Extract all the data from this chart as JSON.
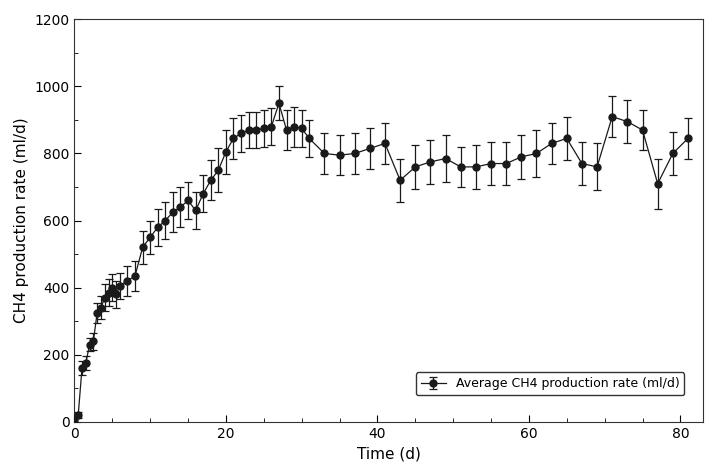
{
  "x": [
    0,
    0.5,
    1,
    1.5,
    2,
    2.5,
    3,
    3.5,
    4,
    4.5,
    5,
    5.5,
    6,
    7,
    8,
    9,
    10,
    11,
    12,
    13,
    14,
    15,
    16,
    17,
    18,
    19,
    20,
    21,
    22,
    23,
    24,
    25,
    26,
    27,
    28,
    29,
    30,
    31,
    33,
    35,
    37,
    39,
    41,
    43,
    45,
    47,
    49,
    51,
    53,
    55,
    57,
    59,
    61,
    63,
    65,
    67,
    69,
    71,
    73,
    75,
    77,
    79,
    81
  ],
  "y": [
    5,
    20,
    160,
    175,
    230,
    240,
    325,
    340,
    370,
    385,
    400,
    380,
    405,
    420,
    435,
    520,
    550,
    580,
    600,
    625,
    640,
    660,
    630,
    680,
    720,
    750,
    805,
    845,
    860,
    870,
    870,
    875,
    880,
    950,
    870,
    880,
    875,
    845,
    800,
    795,
    800,
    815,
    830,
    720,
    760,
    775,
    785,
    760,
    760,
    770,
    770,
    790,
    800,
    830,
    845,
    770,
    760,
    910,
    895,
    870,
    710,
    800,
    845
  ],
  "yerr": [
    5,
    10,
    20,
    20,
    20,
    25,
    30,
    35,
    40,
    40,
    40,
    40,
    40,
    45,
    45,
    50,
    50,
    55,
    55,
    60,
    60,
    55,
    55,
    55,
    60,
    65,
    65,
    60,
    55,
    55,
    55,
    55,
    55,
    50,
    60,
    60,
    55,
    55,
    60,
    60,
    60,
    60,
    60,
    65,
    65,
    65,
    70,
    60,
    65,
    65,
    65,
    65,
    70,
    60,
    65,
    65,
    70,
    60,
    65,
    60,
    75,
    65,
    60
  ],
  "xlabel": "Time (d)",
  "ylabel": "CH4 production rate (ml/d)",
  "legend_label": "Average CH4 production rate (ml/d)",
  "xlim": [
    0,
    83
  ],
  "ylim": [
    0,
    1200
  ],
  "xticks": [
    0,
    20,
    40,
    60,
    80
  ],
  "yticks": [
    0,
    200,
    400,
    600,
    800,
    1000,
    1200
  ],
  "line_color": "#1a1a1a",
  "marker_color": "#1a1a1a",
  "marker_face": "#1a1a1a",
  "marker_size": 5,
  "line_width": 0.9,
  "capsize": 3,
  "elinewidth": 0.9,
  "background_color": "#ffffff",
  "font_size": 11
}
